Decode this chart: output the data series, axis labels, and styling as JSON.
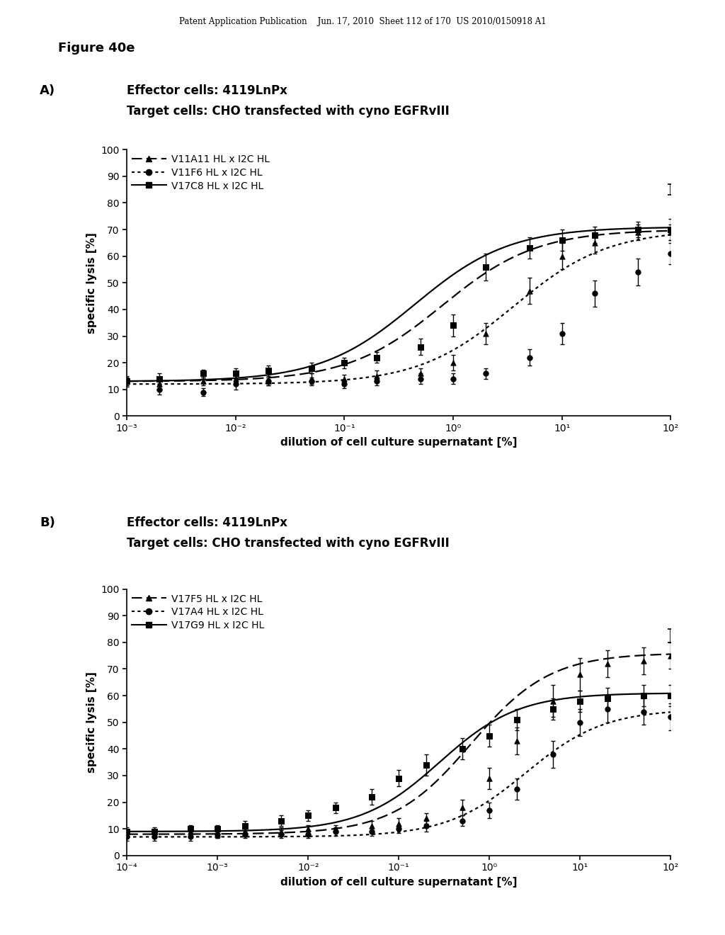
{
  "header_text": "Patent Application Publication    Jun. 17, 2010  Sheet 112 of 170  US 2010/0150918 A1",
  "figure_label": "Figure 40e",
  "panel_A": {
    "label": "A)",
    "title_line1": "Effector cells: 4119LnPx",
    "title_line2": "Target cells: CHO transfected with cyno EGFRvIII",
    "xmin": -3,
    "xmax": 2,
    "ymin": 0,
    "ymax": 100,
    "yticks": [
      0,
      10,
      20,
      30,
      40,
      50,
      60,
      70,
      80,
      90,
      100
    ],
    "xlabel": "dilution of cell culture supernatant [%]",
    "ylabel": "specific lysis [%]",
    "xtick_labels": [
      "10⁻³",
      "10⁻²",
      "10⁻¹",
      "10⁰",
      "10¹",
      "10²"
    ],
    "xtick_vals": [
      -3,
      -2,
      -1,
      0,
      1,
      2
    ],
    "series": [
      {
        "name": "V11A11 HL x I2C HL",
        "linestyle": "dashed",
        "marker": "^",
        "color": "#000000",
        "x": [
          -3,
          -2.7,
          -2.3,
          -2,
          -1.7,
          -1.3,
          -1,
          -0.7,
          -0.3,
          0,
          0.3,
          0.7,
          1,
          1.3,
          1.7,
          2
        ],
        "y": [
          13,
          12,
          13,
          14,
          13,
          14,
          14,
          15,
          16,
          20,
          31,
          47,
          60,
          65,
          69,
          69
        ],
        "yerr": [
          1.5,
          2,
          1.5,
          2,
          1.5,
          2,
          1.5,
          2,
          2,
          3,
          4,
          5,
          5,
          4,
          3,
          3
        ],
        "ec50": -0.1,
        "bottom": 13,
        "top": 70
      },
      {
        "name": "V11F6 HL x I2C HL",
        "linestyle": "dotted",
        "marker": "o",
        "color": "#000000",
        "x": [
          -3,
          -2.7,
          -2.3,
          -2,
          -1.7,
          -1.3,
          -1,
          -0.7,
          -0.3,
          0,
          0.3,
          0.7,
          1,
          1.3,
          1.7,
          2
        ],
        "y": [
          13,
          10,
          9,
          12,
          13,
          13,
          12,
          13,
          14,
          14,
          16,
          22,
          31,
          46,
          54,
          61
        ],
        "yerr": [
          2,
          2,
          1.5,
          2,
          1.5,
          1.5,
          1.5,
          1.5,
          2,
          2,
          2,
          3,
          4,
          5,
          5,
          4
        ],
        "ec50": 0.55,
        "bottom": 12,
        "top": 70
      },
      {
        "name": "V17C8 HL x I2C HL",
        "linestyle": "solid",
        "marker": "s",
        "color": "#000000",
        "x": [
          -3,
          -2.7,
          -2.3,
          -2,
          -1.7,
          -1.3,
          -1,
          -0.7,
          -0.3,
          0,
          0.3,
          0.7,
          1,
          1.3,
          1.7,
          2
        ],
        "y": [
          13,
          14,
          16,
          16,
          17,
          18,
          20,
          22,
          26,
          34,
          56,
          63,
          66,
          68,
          70,
          70
        ],
        "yerr": [
          1.5,
          2,
          1.5,
          2,
          2,
          2,
          2,
          2,
          3,
          4,
          5,
          4,
          4,
          3,
          3,
          4
        ],
        "ec50": -0.35,
        "bottom": 13,
        "top": 71
      }
    ],
    "extra_errbar_x": 2,
    "extra_errbar_y": 83,
    "extra_errbar_err": 4
  },
  "panel_B": {
    "label": "B)",
    "title_line1": "Effector cells: 4119LnPx",
    "title_line2": "Target cells: CHO transfected with cyno EGFRvIII",
    "xmin": -4,
    "xmax": 2,
    "ymin": 0,
    "ymax": 100,
    "yticks": [
      0,
      10,
      20,
      30,
      40,
      50,
      60,
      70,
      80,
      90,
      100
    ],
    "xlabel": "dilution of cell culture supernatant [%]",
    "ylabel": "specific lysis [%]",
    "xtick_labels": [
      "10⁻⁴",
      "10⁻³",
      "10⁻²",
      "10⁻¹",
      "10⁰",
      "10¹",
      "10²"
    ],
    "xtick_vals": [
      -4,
      -3,
      -2,
      -1,
      0,
      1,
      2
    ],
    "series": [
      {
        "name": "V17F5 HL x I2C HL",
        "linestyle": "dashed",
        "marker": "^",
        "color": "#000000",
        "x": [
          -4,
          -3.7,
          -3.3,
          -3,
          -2.7,
          -2.3,
          -2,
          -1.7,
          -1.3,
          -1,
          -0.7,
          -0.3,
          0,
          0.3,
          0.7,
          1,
          1.3,
          1.7,
          2
        ],
        "y": [
          8,
          8,
          9,
          8,
          9,
          9,
          10,
          10,
          11,
          12,
          14,
          18,
          29,
          43,
          58,
          68,
          72,
          73,
          75
        ],
        "yerr": [
          1.5,
          1.5,
          1.5,
          1.5,
          1.5,
          1.5,
          1.5,
          1.5,
          2,
          2,
          2,
          3,
          4,
          5,
          6,
          6,
          5,
          5,
          5
        ],
        "ec50": -0.2,
        "bottom": 8,
        "top": 76
      },
      {
        "name": "V17A4 HL x I2C HL",
        "linestyle": "dotted",
        "marker": "o",
        "color": "#000000",
        "x": [
          -4,
          -3.7,
          -3.3,
          -3,
          -2.7,
          -2.3,
          -2,
          -1.7,
          -1.3,
          -1,
          -0.7,
          -0.3,
          0,
          0.3,
          0.7,
          1,
          1.3,
          1.7,
          2
        ],
        "y": [
          7,
          7,
          7,
          8,
          8,
          8,
          8,
          9,
          9,
          10,
          11,
          13,
          17,
          25,
          38,
          50,
          55,
          54,
          52
        ],
        "yerr": [
          1.5,
          1.5,
          1.5,
          1.5,
          1.5,
          1.5,
          1.5,
          1.5,
          1.5,
          1.5,
          2,
          2,
          3,
          4,
          5,
          5,
          5,
          5,
          5
        ],
        "ec50": 0.4,
        "bottom": 7,
        "top": 55
      },
      {
        "name": "V17G9 HL x I2C HL",
        "linestyle": "solid",
        "marker": "s",
        "color": "#000000",
        "x": [
          -4,
          -3.7,
          -3.3,
          -3,
          -2.7,
          -2.3,
          -2,
          -1.7,
          -1.3,
          -1,
          -0.7,
          -0.3,
          0,
          0.3,
          0.7,
          1,
          1.3,
          1.7,
          2
        ],
        "y": [
          9,
          9,
          10,
          10,
          11,
          13,
          15,
          18,
          22,
          29,
          34,
          40,
          45,
          51,
          55,
          58,
          59,
          60,
          60
        ],
        "yerr": [
          1.5,
          1.5,
          1.5,
          1.5,
          2,
          2,
          2,
          2,
          3,
          3,
          4,
          4,
          4,
          4,
          4,
          4,
          4,
          4,
          4
        ],
        "ec50": -0.55,
        "bottom": 9,
        "top": 61
      }
    ],
    "extra_errbar_x": 2,
    "extra_errbar_y": 80,
    "extra_errbar_err": 5
  },
  "background_color": "#ffffff",
  "text_color": "#000000"
}
